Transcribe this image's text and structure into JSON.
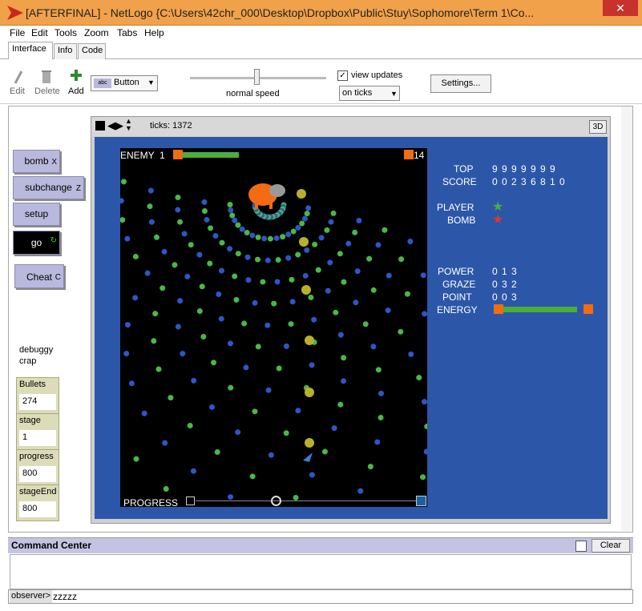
{
  "window": {
    "title": "[AFTERFINAL] - NetLogo {C:\\Users\\42chr_000\\Desktop\\Dropbox\\Public\\Stuy\\Sophomore\\Term 1\\Co...",
    "close": "✕"
  },
  "menu": [
    "File",
    "Edit",
    "Tools",
    "Zoom",
    "Tabs",
    "Help"
  ],
  "tabs": [
    "Interface",
    "Info",
    "Code"
  ],
  "toolbar": {
    "edit": "Edit",
    "delete": "Delete",
    "add": "Add",
    "widget_type": "Button",
    "speed_label": "normal speed",
    "view_updates": "view updates",
    "update_mode": "on ticks",
    "settings": "Settings..."
  },
  "buttons": {
    "bomb": {
      "label": "bomb",
      "key": "X"
    },
    "subchange": {
      "label": "subchange",
      "key": "Z"
    },
    "setup": {
      "label": "setup",
      "key": ""
    },
    "go": {
      "label": "go",
      "key": ""
    },
    "cheat": {
      "label": "Cheat",
      "key": "C"
    }
  },
  "note": "debuggy\ncrap",
  "monitors": [
    {
      "label": "Bullets",
      "value": "274"
    },
    {
      "label": "stage",
      "value": "1"
    },
    {
      "label": "progress",
      "value": "800"
    },
    {
      "label": "stageEnd",
      "value": "800"
    }
  ],
  "view": {
    "ticks_label": "ticks: 1372",
    "btn_3d": "3D"
  },
  "game": {
    "enemy_label": "ENEMY",
    "enemy_count": "1",
    "enemy_hp": "14",
    "progress_label": "PROGRESS",
    "top_label": "TOP",
    "top_value": "9 9 9 9 9 9 9",
    "score_label": "SCORE",
    "score_value": "0 0 2 3 6 8 1 0",
    "player_label": "PLAYER",
    "bomb_label": "BOMB",
    "power_label": "POWER",
    "power_value": "0 1 3",
    "graze_label": "GRAZE",
    "graze_value": "0 3 2",
    "point_label": "POINT",
    "point_value": "0 0 3",
    "energy_label": "ENERGY"
  },
  "colors": {
    "accent": "#f0a14a",
    "button": "#b9b9dd",
    "monitor": "#dcdcb8",
    "world": "#2c57a8",
    "bullet_blue": "#2f55c8",
    "bullet_green": "#49b848",
    "health_green": "#4cae3c",
    "orange": "#f36b12"
  },
  "command_center": {
    "title": "Command Center",
    "clear": "Clear",
    "observer": "observer>",
    "input": "zzzzz"
  }
}
